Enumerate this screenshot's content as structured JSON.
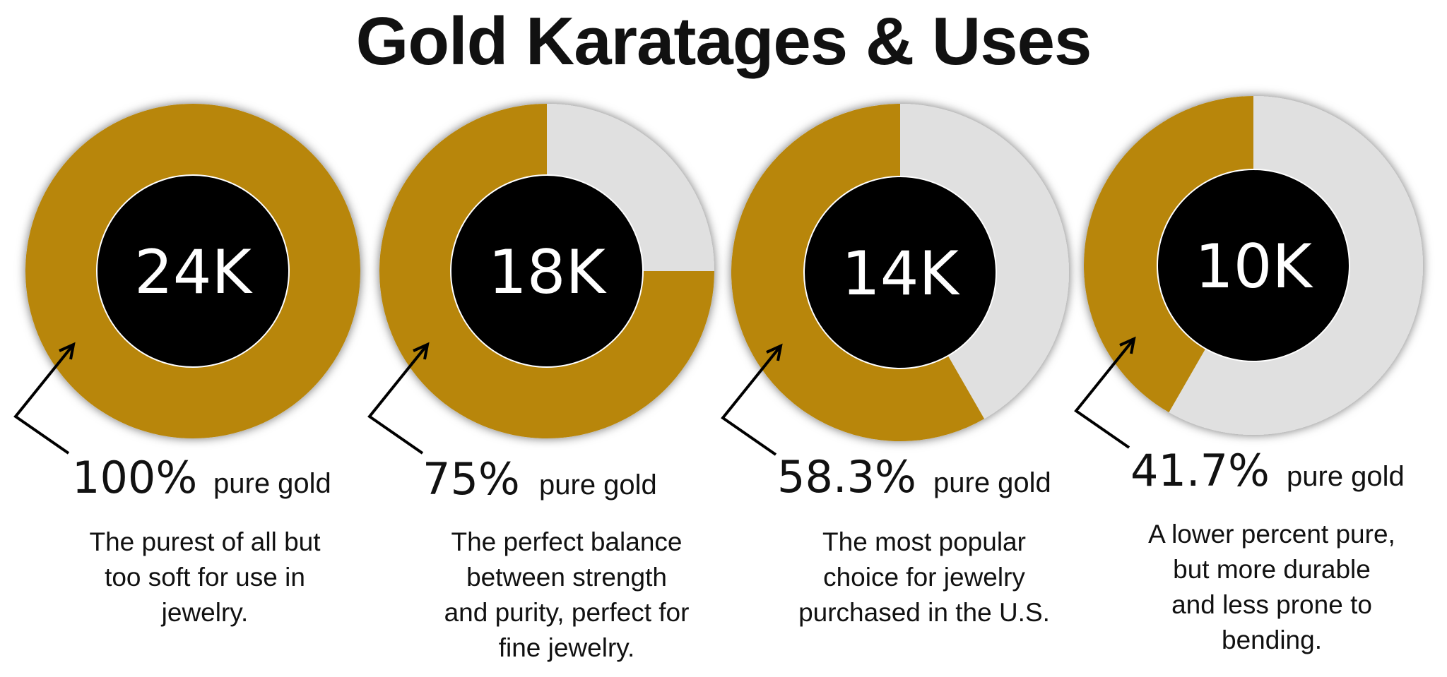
{
  "header": {
    "title": "Gold Karatages & Uses"
  },
  "colors": {
    "gold": "#B8860B",
    "remainder": "#E0E0E0",
    "center": "#000000"
  },
  "chart_data": {
    "type": "pie",
    "title": "Gold Karatages & Uses",
    "pure_suffix": "pure gold",
    "items": [
      {
        "karat": "24K",
        "percent": 100,
        "percent_label": "100%",
        "description": [
          "The purest of all but",
          "too soft for use in",
          "jewelry."
        ]
      },
      {
        "karat": "18K",
        "percent": 75,
        "percent_label": "75%",
        "description": [
          "The perfect balance",
          "between strength",
          "and purity, perfect for",
          "fine jewelry."
        ]
      },
      {
        "karat": "14K",
        "percent": 58.3,
        "percent_label": "58.3%",
        "description": [
          "The most popular",
          "choice for jewelry",
          "purchased in the U.S."
        ]
      },
      {
        "karat": "10K",
        "percent": 41.7,
        "percent_label": "41.7%",
        "description": [
          "A lower percent pure,",
          "but more durable",
          "and less prone to",
          "bending."
        ]
      }
    ]
  }
}
